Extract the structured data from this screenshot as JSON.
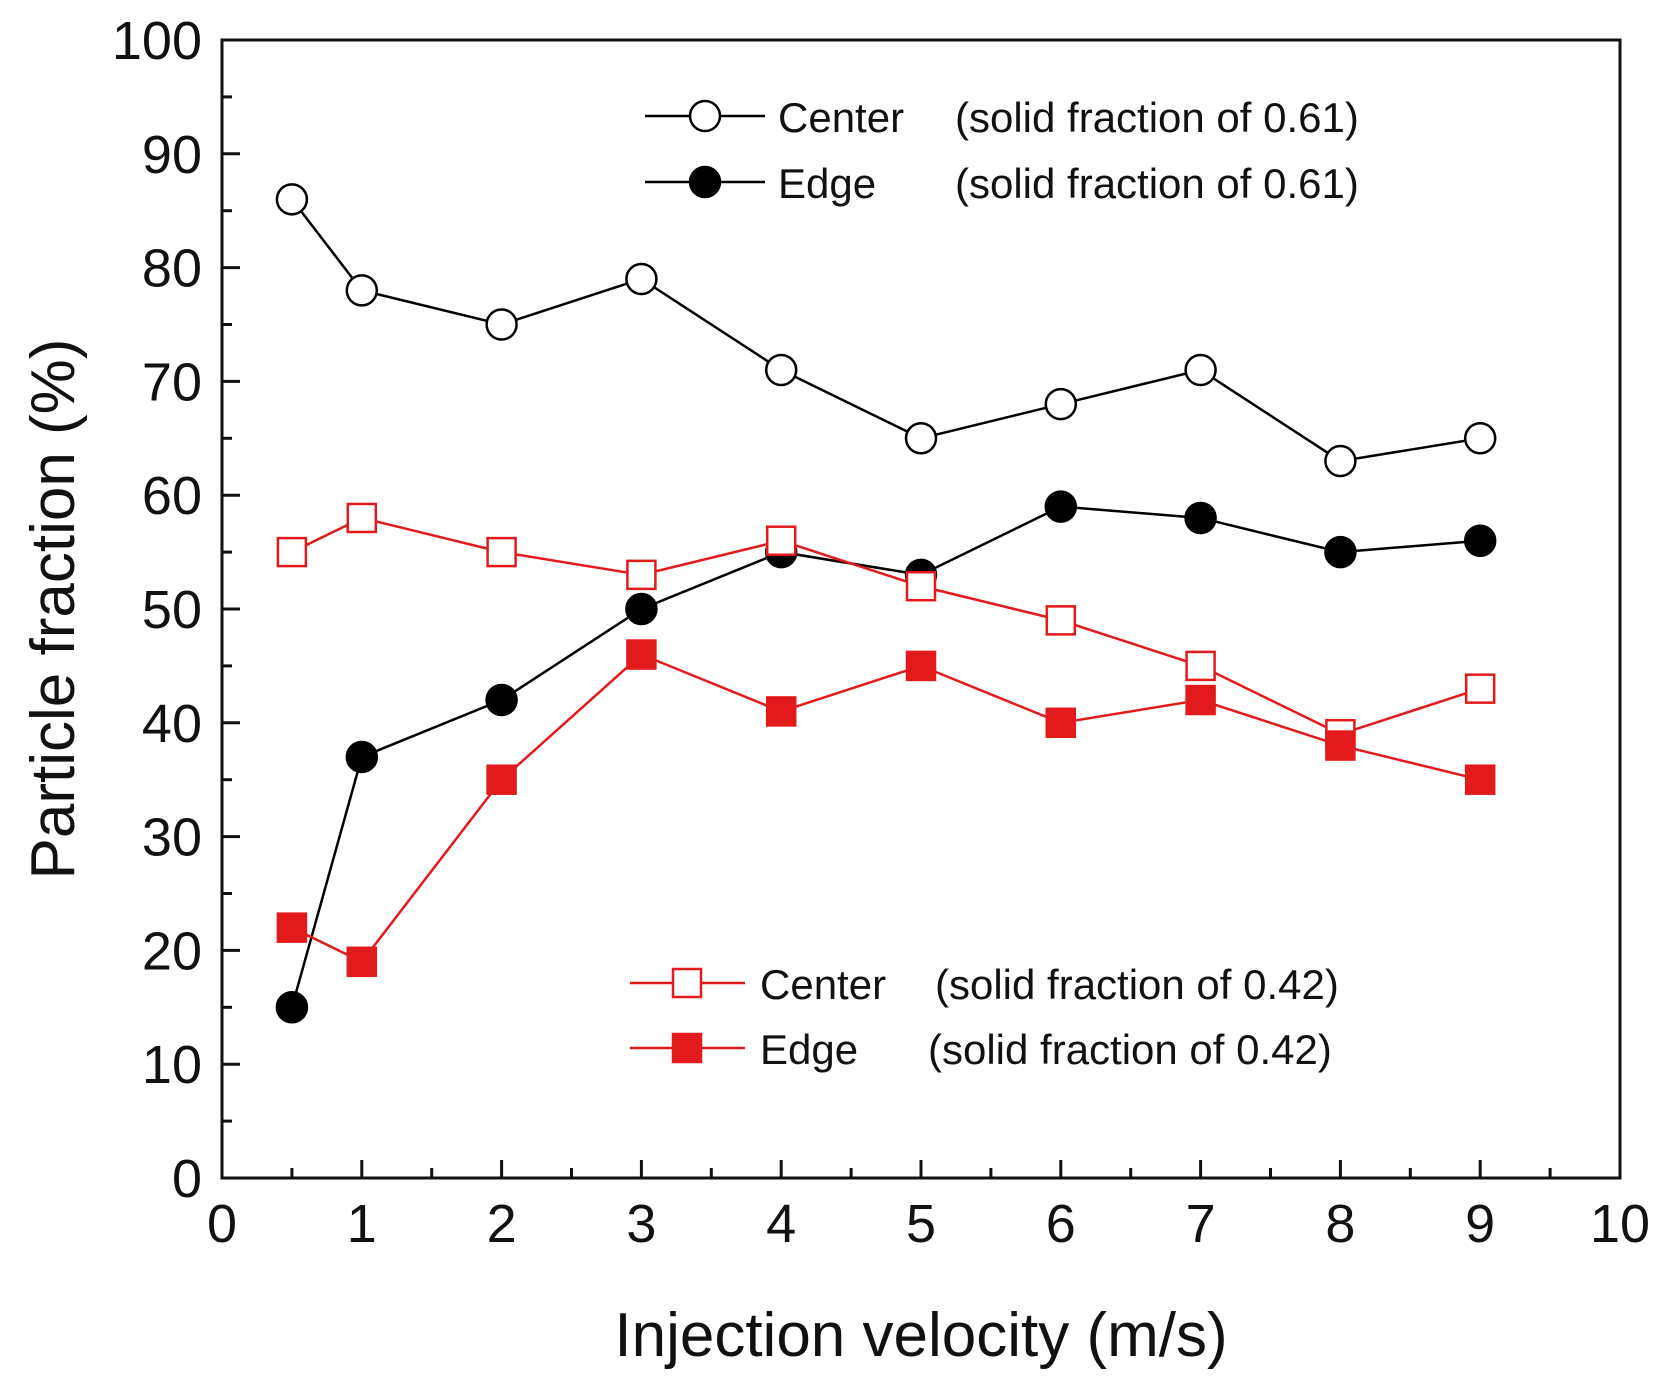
{
  "chart_data": {
    "type": "line",
    "xlabel": "Injection velocity (m/s)",
    "ylabel": "Particle fraction (%)",
    "xlim": [
      0,
      10
    ],
    "ylim": [
      0,
      100
    ],
    "x_ticks": [
      0,
      1,
      2,
      3,
      4,
      5,
      6,
      7,
      8,
      9,
      10
    ],
    "y_ticks": [
      0,
      10,
      20,
      30,
      40,
      50,
      60,
      70,
      80,
      90,
      100
    ],
    "x_tick_labels": [
      "0",
      "1",
      "2",
      "3",
      "4",
      "5",
      "6",
      "7",
      "8",
      "9",
      "10"
    ],
    "y_tick_labels": [
      "0",
      "10",
      "20",
      "30",
      "40",
      "50",
      "60",
      "70",
      "80",
      "90",
      "100"
    ],
    "grid": false,
    "x": [
      0.5,
      1,
      2,
      3,
      4,
      5,
      6,
      7,
      8,
      9
    ],
    "series": [
      {
        "legend_name": "Center",
        "legend_detail": "(solid fraction of 0.61)",
        "color": "#000000",
        "marker": "circle-open",
        "values": [
          86,
          78,
          75,
          79,
          71,
          65,
          68,
          71,
          63,
          65
        ]
      },
      {
        "legend_name": "Edge",
        "legend_detail": "(solid fraction of 0.61)",
        "color": "#000000",
        "marker": "circle-filled",
        "values": [
          15,
          37,
          42,
          50,
          55,
          53,
          59,
          58,
          55,
          56
        ]
      },
      {
        "legend_name": "Center",
        "legend_detail": "(solid fraction of 0.42)",
        "color": "#e31a1c",
        "marker": "square-open",
        "values": [
          55,
          58,
          55,
          53,
          56,
          52,
          49,
          45,
          39,
          43
        ]
      },
      {
        "legend_name": "Edge",
        "legend_detail": "(solid fraction of 0.42)",
        "color": "#e31a1c",
        "marker": "square-filled",
        "values": [
          22,
          19,
          35,
          46,
          41,
          45,
          40,
          42,
          38,
          35
        ]
      }
    ],
    "legends": [
      {
        "placement": "top-right",
        "series_indices": [
          0,
          1
        ]
      },
      {
        "placement": "bottom-right",
        "series_indices": [
          2,
          3
        ]
      }
    ]
  }
}
